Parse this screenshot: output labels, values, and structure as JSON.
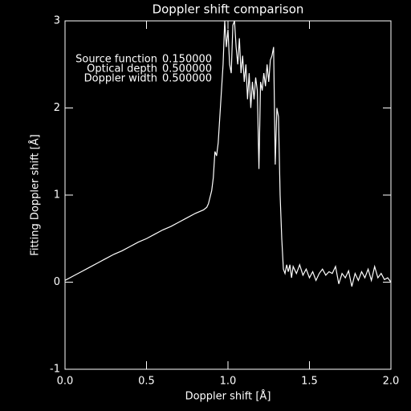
{
  "chart_data": {
    "type": "line",
    "title": "Doppler shift comparison",
    "xlabel": "Doppler shift [Å]",
    "ylabel": "Fitting Doppler shift [Å]",
    "annotations": [
      {
        "name": "Source function",
        "value": "0.150000"
      },
      {
        "name": "Optical depth",
        "value": "0.500000"
      },
      {
        "name": "Doppler width",
        "value": "0.500000"
      }
    ],
    "xlim": [
      0,
      2
    ],
    "ylim": [
      -1,
      3
    ],
    "xticks": [
      {
        "value": 0,
        "label": "0.0"
      },
      0.5,
      {
        "value": 1,
        "label": "1.0"
      },
      1.5,
      {
        "value": 2,
        "label": "2.0"
      }
    ],
    "yticks": [
      -1,
      0,
      1,
      2,
      3
    ],
    "color": "#ffffff",
    "x": [
      0,
      0.05,
      0.1,
      0.15,
      0.2,
      0.25,
      0.3,
      0.35,
      0.4,
      0.45,
      0.5,
      0.55,
      0.6,
      0.65,
      0.7,
      0.75,
      0.8,
      0.85,
      0.87,
      0.88,
      0.9,
      0.91,
      0.92,
      0.93,
      0.94,
      0.95,
      0.96,
      0.97,
      0.98,
      0.99,
      1.0,
      1.01,
      1.02,
      1.03,
      1.04,
      1.05,
      1.06,
      1.07,
      1.08,
      1.09,
      1.1,
      1.11,
      1.12,
      1.13,
      1.14,
      1.15,
      1.16,
      1.17,
      1.18,
      1.19,
      1.2,
      1.21,
      1.22,
      1.23,
      1.24,
      1.25,
      1.26,
      1.27,
      1.28,
      1.29,
      1.3,
      1.31,
      1.32,
      1.33,
      1.34,
      1.35,
      1.36,
      1.37,
      1.38,
      1.39,
      1.4,
      1.42,
      1.44,
      1.46,
      1.48,
      1.5,
      1.52,
      1.54,
      1.56,
      1.58,
      1.6,
      1.62,
      1.64,
      1.66,
      1.68,
      1.7,
      1.72,
      1.74,
      1.76,
      1.78,
      1.8,
      1.82,
      1.84,
      1.86,
      1.88,
      1.9,
      1.92,
      1.94,
      1.96,
      1.98,
      2.0
    ],
    "values": [
      0.02,
      0.07,
      0.12,
      0.17,
      0.22,
      0.27,
      0.32,
      0.36,
      0.41,
      0.46,
      0.5,
      0.55,
      0.6,
      0.64,
      0.69,
      0.74,
      0.79,
      0.83,
      0.86,
      0.9,
      1.05,
      1.2,
      1.5,
      1.45,
      1.6,
      1.9,
      2.2,
      2.5,
      3.0,
      2.7,
      2.9,
      2.5,
      2.4,
      2.95,
      3.0,
      2.7,
      2.5,
      2.8,
      2.4,
      2.6,
      2.3,
      2.5,
      2.1,
      2.4,
      2.0,
      2.3,
      2.1,
      2.35,
      2.2,
      1.3,
      2.3,
      2.2,
      2.4,
      2.25,
      2.5,
      2.3,
      2.55,
      2.6,
      2.7,
      1.35,
      2.0,
      1.9,
      1.0,
      0.5,
      0.15,
      0.1,
      0.2,
      0.12,
      0.2,
      0.05,
      0.18,
      0.1,
      0.2,
      0.08,
      0.15,
      0.05,
      0.12,
      0.02,
      0.1,
      0.15,
      0.08,
      0.12,
      0.1,
      0.18,
      -0.02,
      0.1,
      0.05,
      0.13,
      -0.05,
      0.1,
      0.02,
      0.12,
      0.05,
      0.15,
      0.02,
      0.18,
      0.05,
      0.1,
      0.03,
      0.05,
      0.0
    ]
  }
}
